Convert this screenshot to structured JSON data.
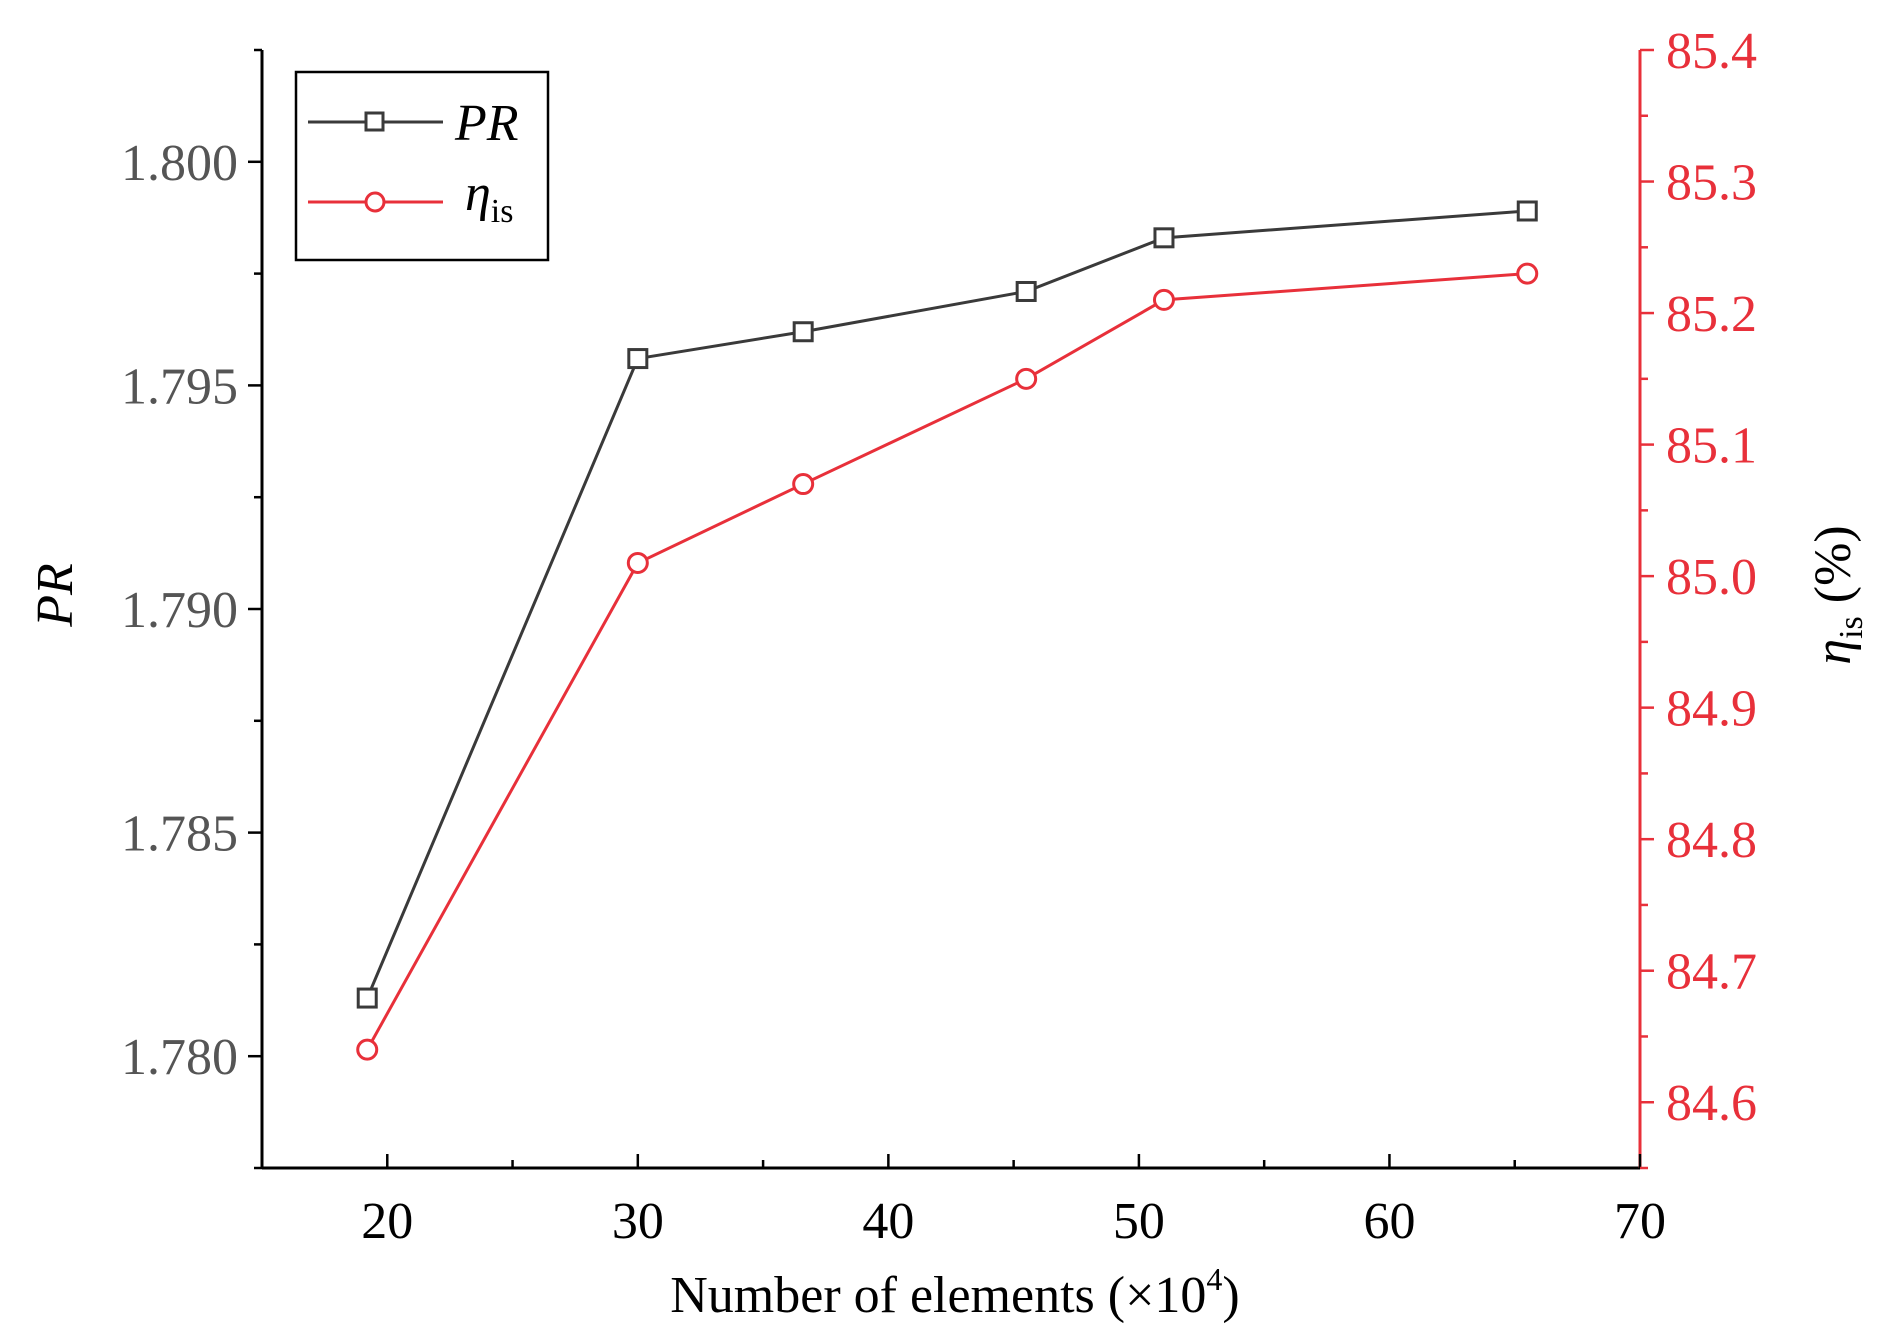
{
  "chart_data": {
    "type": "line",
    "title": "",
    "xlabel_main": "Number of elements (×10",
    "xlabel_sup": "4",
    "xlabel_end": ")",
    "ylabel": "PR",
    "y2label_symbol": "η",
    "y2label_sub": "is",
    "y2label_unit": " (%)",
    "xlim": [
      15,
      70
    ],
    "ylim": [
      1.7775,
      1.8025
    ],
    "y2lim": [
      84.55,
      85.4
    ],
    "xticks": [
      20,
      30,
      40,
      50,
      60,
      70
    ],
    "xtick_labels": [
      "20",
      "30",
      "40",
      "50",
      "60",
      "70"
    ],
    "yticks": [
      1.78,
      1.785,
      1.79,
      1.795,
      1.8
    ],
    "ytick_labels": [
      "1.780",
      "1.785",
      "1.790",
      "1.795",
      "1.800"
    ],
    "y2ticks": [
      84.6,
      84.7,
      84.8,
      84.9,
      85.0,
      85.1,
      85.2,
      85.3,
      85.4
    ],
    "y2tick_labels": [
      "84.6",
      "84.7",
      "84.8",
      "84.9",
      "85.0",
      "85.1",
      "85.2",
      "85.3",
      "85.4"
    ],
    "series": [
      {
        "name": "PR",
        "legend_label": "PR",
        "axis": "left",
        "color": "#3a3a3a",
        "marker": "square",
        "x": [
          19.2,
          30.0,
          36.6,
          45.5,
          51.0,
          65.5
        ],
        "y": [
          1.7813,
          1.7956,
          1.7962,
          1.7971,
          1.7983,
          1.7989
        ]
      },
      {
        "name": "eta_is",
        "legend_label": "η",
        "legend_sub": "is",
        "axis": "right",
        "color": "#e8303a",
        "marker": "circle",
        "x": [
          19.2,
          30.0,
          36.6,
          45.5,
          51.0,
          65.5
        ],
        "y": [
          84.64,
          85.01,
          85.07,
          85.15,
          85.21,
          85.23
        ]
      }
    ],
    "legend_position": "top-left",
    "grid": false,
    "left_axis_color": "#333333",
    "right_axis_color": "#e8303a"
  }
}
